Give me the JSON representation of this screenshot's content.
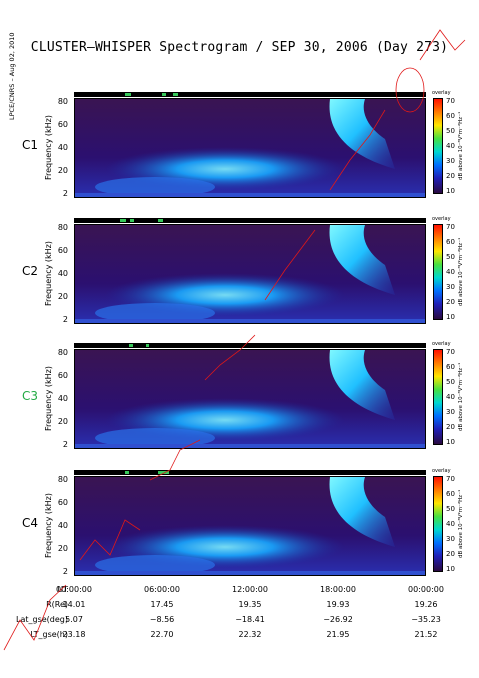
{
  "title": "CLUSTER–WHISPER Spectrogram / SEP 30, 2006 (Day 273)",
  "credit": "LPCE/CNRS – Aug 02, 2010",
  "ylabel": "Frequency (kHz)",
  "colorbar_label": "dB above 10⁻⁸V²m⁻²Hz⁻¹",
  "overlay_label": "overlay",
  "panels": [
    {
      "name": "C1",
      "color": "#000000"
    },
    {
      "name": "C2",
      "color": "#000000"
    },
    {
      "name": "C3",
      "color": "#22aa44"
    },
    {
      "name": "C4",
      "color": "#000000"
    }
  ],
  "yticks": [
    "80",
    "60",
    "40",
    "20",
    "2"
  ],
  "cticks": [
    "70",
    "60",
    "50",
    "40",
    "30",
    "20",
    "10"
  ],
  "axis_rows": [
    {
      "label": "UT",
      "values": [
        "00:00:00",
        "06:00:00",
        "12:00:00",
        "18:00:00",
        "00:00:00"
      ]
    },
    {
      "label": "R(Re)",
      "values": [
        "14.01",
        "17.45",
        "19.35",
        "19.93",
        "19.26"
      ]
    },
    {
      "label": "Lat_gse(deg)",
      "values": [
        "5.07",
        "−8.56",
        "−18.41",
        "−26.92",
        "−35.23"
      ]
    },
    {
      "label": "LT_gse(h)",
      "values": [
        "23.18",
        "22.70",
        "22.32",
        "21.95",
        "21.52"
      ]
    }
  ],
  "chart_data": {
    "type": "heatmap",
    "title": "CLUSTER–WHISPER Spectrogram / SEP 30, 2006 (Day 273)",
    "xlabel": "UT",
    "ylabel": "Frequency (kHz)",
    "ylim": [
      2,
      80
    ],
    "x_ticks": [
      "00:00:00",
      "06:00:00",
      "12:00:00",
      "18:00:00",
      "00:00:00"
    ],
    "y_ticks": [
      80,
      60,
      40,
      20,
      2
    ],
    "colorbar_range_dB": [
      10,
      70
    ],
    "colorbar_ticks": [
      70,
      60,
      50,
      40,
      30,
      20,
      10
    ],
    "panels": [
      "C1",
      "C2",
      "C3",
      "C4"
    ]
  }
}
